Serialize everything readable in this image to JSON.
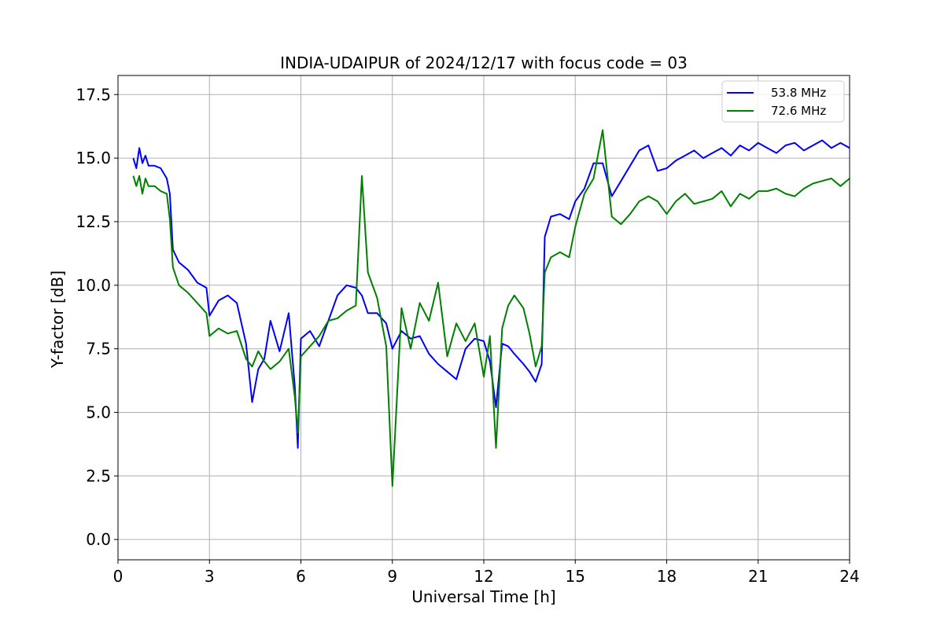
{
  "chart_data": {
    "type": "line",
    "title": "INDIA-UDAIPUR of 2024/12/17 with focus code = 03",
    "xlabel": "Universal Time [h]",
    "ylabel": "Y-factor [dB]",
    "xlim": [
      0,
      24
    ],
    "ylim": [
      -0.8,
      18.25
    ],
    "xticks": [
      0,
      3,
      6,
      9,
      12,
      15,
      18,
      21,
      24
    ],
    "xtick_labels": [
      "0",
      "3",
      "6",
      "9",
      "12",
      "15",
      "18",
      "21",
      "24"
    ],
    "yticks": [
      0,
      2.5,
      5,
      7.5,
      10,
      12.5,
      15,
      17.5
    ],
    "ytick_labels": [
      "0.0",
      "2.5",
      "5.0",
      "7.5",
      "10.0",
      "12.5",
      "15.0",
      "17.5"
    ],
    "grid": true,
    "legend_position": "top-right",
    "series": [
      {
        "name": "53.8 MHz",
        "color": "#0000ff",
        "x": [
          0.5,
          0.6,
          0.7,
          0.8,
          0.9,
          1.0,
          1.2,
          1.4,
          1.6,
          1.7,
          1.8,
          2.0,
          2.3,
          2.6,
          2.9,
          3.0,
          3.3,
          3.6,
          3.9,
          4.2,
          4.4,
          4.6,
          4.8,
          5.0,
          5.3,
          5.6,
          5.8,
          5.9,
          6.0,
          6.3,
          6.6,
          6.9,
          7.2,
          7.5,
          7.8,
          8.0,
          8.2,
          8.5,
          8.8,
          9.0,
          9.3,
          9.6,
          9.9,
          10.2,
          10.5,
          10.8,
          11.1,
          11.4,
          11.7,
          12.0,
          12.2,
          12.4,
          12.6,
          12.8,
          13.0,
          13.3,
          13.5,
          13.7,
          13.9,
          14.0,
          14.2,
          14.5,
          14.8,
          15.0,
          15.3,
          15.6,
          15.9,
          16.2,
          16.5,
          16.8,
          17.1,
          17.4,
          17.7,
          18.0,
          18.3,
          18.6,
          18.9,
          19.2,
          19.5,
          19.8,
          20.1,
          20.4,
          20.7,
          21.0,
          21.3,
          21.6,
          21.9,
          22.2,
          22.5,
          22.8,
          23.1,
          23.4,
          23.7,
          24.0
        ],
        "values": [
          15.0,
          14.6,
          15.4,
          14.8,
          15.1,
          14.7,
          14.7,
          14.6,
          14.2,
          13.6,
          11.4,
          10.9,
          10.6,
          10.1,
          9.9,
          8.8,
          9.4,
          9.6,
          9.3,
          7.7,
          5.4,
          6.7,
          7.1,
          8.6,
          7.4,
          8.9,
          6.0,
          3.6,
          7.9,
          8.2,
          7.6,
          8.6,
          9.6,
          10.0,
          9.9,
          9.6,
          8.9,
          8.9,
          8.5,
          7.5,
          8.2,
          7.9,
          8.0,
          7.3,
          6.9,
          6.6,
          6.3,
          7.5,
          7.9,
          7.8,
          7.0,
          5.2,
          7.7,
          7.6,
          7.3,
          6.9,
          6.6,
          6.2,
          6.9,
          11.9,
          12.7,
          12.8,
          12.6,
          13.3,
          13.8,
          14.8,
          14.8,
          13.5,
          14.1,
          14.7,
          15.3,
          15.5,
          14.5,
          14.6,
          14.9,
          15.1,
          15.3,
          15.0,
          15.2,
          15.4,
          15.1,
          15.5,
          15.3,
          15.6,
          15.4,
          15.2,
          15.5,
          15.6,
          15.3,
          15.5,
          15.7,
          15.4,
          15.6,
          15.4
        ]
      },
      {
        "name": "72.6 MHz",
        "color": "#008000",
        "x": [
          0.5,
          0.6,
          0.7,
          0.8,
          0.9,
          1.0,
          1.2,
          1.4,
          1.6,
          1.7,
          1.8,
          2.0,
          2.3,
          2.6,
          2.9,
          3.0,
          3.3,
          3.6,
          3.9,
          4.2,
          4.4,
          4.6,
          4.8,
          5.0,
          5.3,
          5.6,
          5.8,
          5.9,
          6.0,
          6.3,
          6.6,
          6.9,
          7.2,
          7.5,
          7.8,
          8.0,
          8.2,
          8.5,
          8.8,
          9.0,
          9.3,
          9.6,
          9.9,
          10.2,
          10.5,
          10.8,
          11.1,
          11.4,
          11.7,
          12.0,
          12.2,
          12.4,
          12.6,
          12.8,
          13.0,
          13.3,
          13.5,
          13.7,
          13.9,
          14.0,
          14.2,
          14.5,
          14.8,
          15.0,
          15.3,
          15.6,
          15.9,
          16.2,
          16.5,
          16.8,
          17.1,
          17.4,
          17.7,
          18.0,
          18.3,
          18.6,
          18.9,
          19.2,
          19.5,
          19.8,
          20.1,
          20.4,
          20.7,
          21.0,
          21.3,
          21.6,
          21.9,
          22.2,
          22.5,
          22.8,
          23.1,
          23.4,
          23.7,
          24.0
        ],
        "values": [
          14.3,
          13.9,
          14.3,
          13.6,
          14.2,
          13.9,
          13.9,
          13.7,
          13.6,
          12.6,
          10.7,
          10.0,
          9.7,
          9.3,
          8.9,
          8.0,
          8.3,
          8.1,
          8.2,
          7.1,
          6.8,
          7.4,
          7.0,
          6.7,
          7.0,
          7.5,
          5.6,
          4.2,
          7.2,
          7.6,
          8.0,
          8.6,
          8.7,
          9.0,
          9.2,
          14.3,
          10.5,
          9.5,
          7.6,
          2.1,
          9.1,
          7.5,
          9.3,
          8.6,
          10.1,
          7.2,
          8.5,
          7.8,
          8.5,
          6.4,
          8.0,
          3.6,
          8.3,
          9.2,
          9.6,
          9.1,
          8.1,
          6.8,
          7.6,
          10.5,
          11.1,
          11.3,
          11.1,
          12.3,
          13.6,
          14.2,
          16.1,
          12.7,
          12.4,
          12.8,
          13.3,
          13.5,
          13.3,
          12.8,
          13.3,
          13.6,
          13.2,
          13.3,
          13.4,
          13.7,
          13.1,
          13.6,
          13.4,
          13.7,
          13.7,
          13.8,
          13.6,
          13.5,
          13.8,
          14.0,
          14.1,
          14.2,
          13.9,
          14.2
        ]
      }
    ]
  }
}
